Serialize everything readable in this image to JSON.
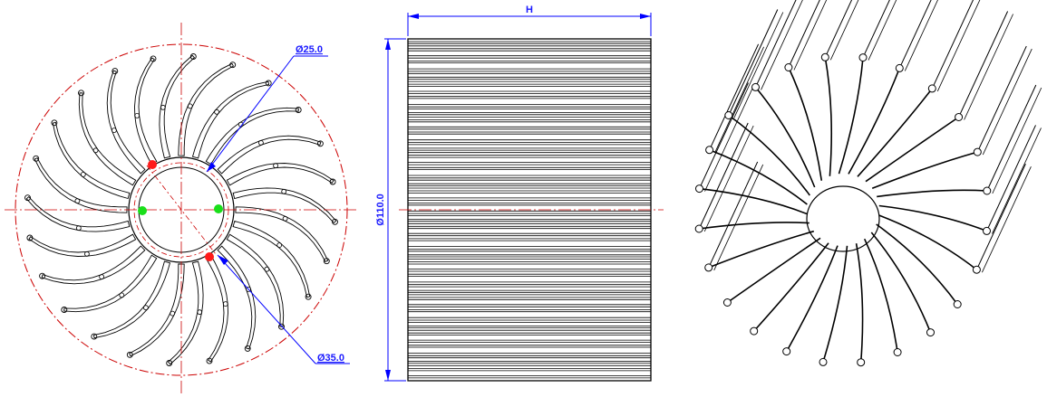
{
  "front_view": {
    "label_inner_diameter": "Ø25.0",
    "label_outer_ring": "Ø35.0",
    "fin_count": 24,
    "marker_colors": {
      "red": "#ff1a1a",
      "green": "#1adf1a"
    }
  },
  "side_view": {
    "label_height": "H",
    "label_diameter": "Ø110.0"
  },
  "iso_view": {
    "fin_count": 24
  },
  "colors": {
    "outline": "#000000",
    "centerline": "#cc0000",
    "dimension": "#0000ff"
  }
}
